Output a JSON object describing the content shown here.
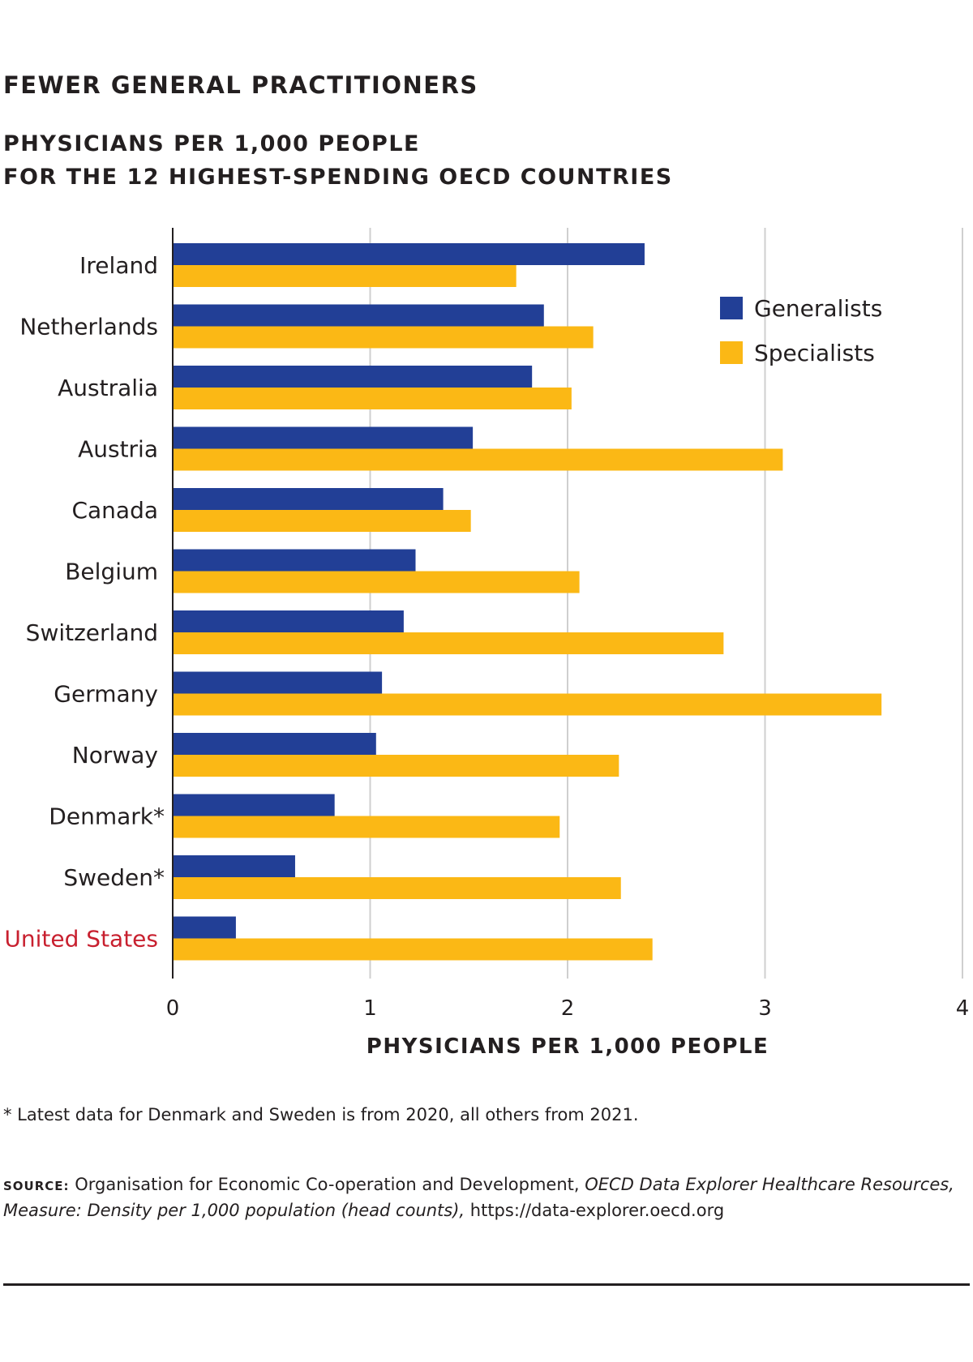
{
  "title": "FEWER GENERAL PRACTITIONERS",
  "subtitle_line1": "PHYSICIANS PER 1,000 PEOPLE",
  "subtitle_line2": "FOR THE 12 HIGHEST-SPENDING OECD COUNTRIES",
  "colors": {
    "generalists": "#223f96",
    "specialists": "#fbb815",
    "highlight_label": "#c8202f",
    "grid": "#cfcfcf",
    "axis": "#231f20"
  },
  "chart_data": {
    "type": "bar",
    "orientation": "horizontal",
    "categories": [
      "Ireland",
      "Netherlands",
      "Australia",
      "Austria",
      "Canada",
      "Belgium",
      "Switzerland",
      "Germany",
      "Norway",
      "Denmark*",
      "Sweden*",
      "United States"
    ],
    "highlighted_category": "United States",
    "series": [
      {
        "name": "Generalists",
        "values": [
          2.39,
          1.88,
          1.82,
          1.52,
          1.37,
          1.23,
          1.17,
          1.06,
          1.03,
          0.82,
          0.62,
          0.32
        ]
      },
      {
        "name": "Specialists",
        "values": [
          1.74,
          2.13,
          2.02,
          3.09,
          1.51,
          2.06,
          2.79,
          3.59,
          2.26,
          1.96,
          2.27,
          2.43
        ]
      }
    ],
    "xlim": [
      0,
      4
    ],
    "xticks": [
      "0",
      "1",
      "2",
      "3",
      "4"
    ],
    "xlabel": "PHYSICIANS PER 1,000 PEOPLE",
    "grid": true,
    "legend_position": "top-right"
  },
  "footnote": "* Latest data for Denmark and Sweden is from 2020, all others from 2021.",
  "source": {
    "label": "SOURCE:",
    "text_plain": " Organisation for Economic Co-operation and Development, ",
    "text_italic": "OECD Data Explorer Healthcare Resources, Measure: Density per 1,000 population (head counts),",
    "text_url": " https://data-explorer.oecd.org"
  }
}
